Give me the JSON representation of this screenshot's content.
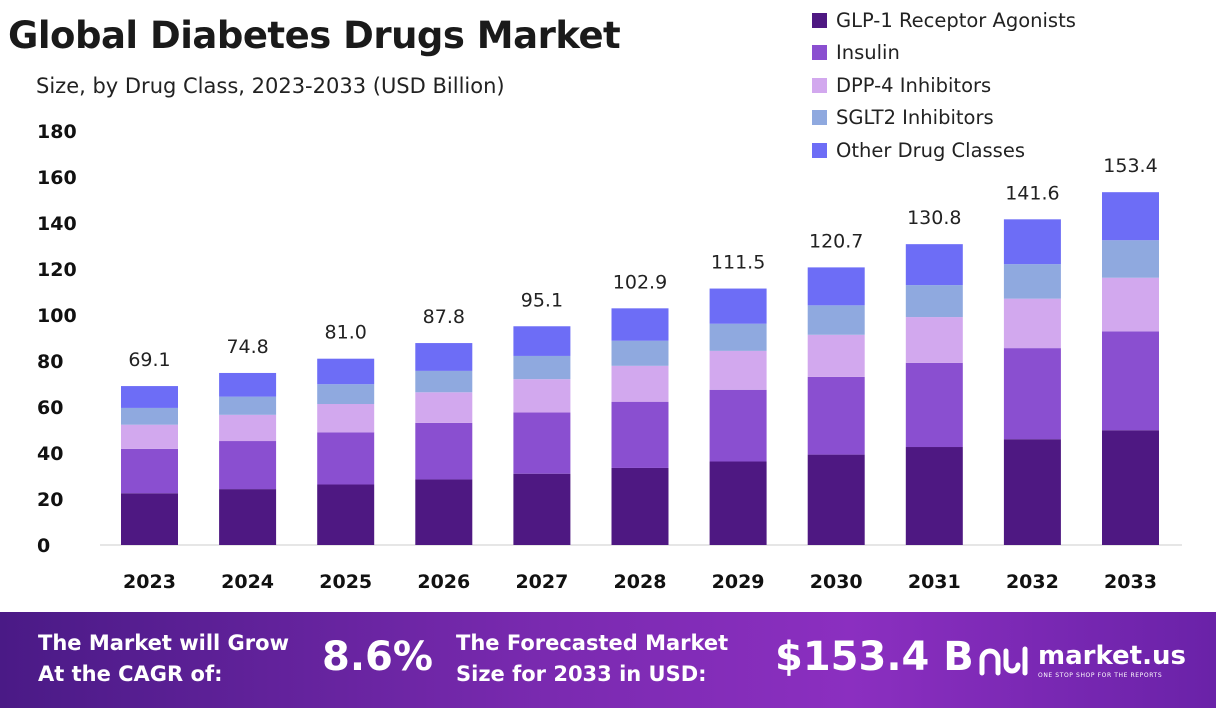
{
  "header": {
    "title": "Global Diabetes Drugs Market",
    "subtitle": "Size, by Drug Class, 2023-2033 (USD Billion)"
  },
  "chart_data": {
    "type": "bar",
    "stacked": true,
    "categories": [
      "2023",
      "2024",
      "2025",
      "2026",
      "2027",
      "2028",
      "2029",
      "2030",
      "2031",
      "2032",
      "2033"
    ],
    "totals": [
      69.1,
      74.8,
      81.0,
      87.8,
      95.1,
      102.9,
      111.5,
      120.7,
      130.8,
      141.6,
      153.4
    ],
    "total_labels": [
      "69.1",
      "74.8",
      "81.0",
      "87.8",
      "95.1",
      "102.9",
      "111.5",
      "120.7",
      "130.8",
      "141.6",
      "153.4"
    ],
    "series": [
      {
        "name": "GLP-1 Receptor Agonists",
        "color": "#4e1882",
        "values": [
          22.5,
          24.3,
          26.3,
          28.5,
          31.0,
          33.5,
          36.3,
          39.3,
          42.6,
          46.0,
          49.9
        ]
      },
      {
        "name": "Insulin",
        "color": "#8a4fd0",
        "values": [
          19.3,
          20.9,
          22.7,
          24.6,
          26.6,
          28.8,
          31.2,
          33.8,
          36.6,
          39.6,
          43.0
        ]
      },
      {
        "name": "DPP-4 Inhibitors",
        "color": "#d2a8ee",
        "values": [
          10.5,
          11.4,
          12.3,
          13.3,
          14.5,
          15.6,
          16.9,
          18.3,
          19.9,
          21.5,
          23.3
        ]
      },
      {
        "name": "SGLT2 Inhibitors",
        "color": "#8fa9df",
        "values": [
          7.3,
          7.9,
          8.6,
          9.3,
          10.1,
          10.9,
          11.8,
          12.8,
          13.9,
          15.0,
          16.3
        ]
      },
      {
        "name": "Other Drug Classes",
        "color": "#6d6df6",
        "values": [
          9.5,
          10.3,
          11.1,
          12.1,
          12.9,
          14.1,
          15.3,
          16.5,
          17.8,
          19.5,
          20.9
        ]
      }
    ],
    "y_ticks": [
      "0",
      "20",
      "40",
      "60",
      "80",
      "100",
      "120",
      "140",
      "160",
      "180"
    ],
    "ylim": [
      0,
      180
    ],
    "grid": false,
    "legend_position": "top-right"
  },
  "footer": {
    "cagr_text_line1": "The Market will Grow",
    "cagr_text_line2": "At the CAGR of:",
    "cagr_value": "8.6%",
    "forecast_text_line1": "The Forecasted Market",
    "forecast_text_line2": "Size for 2033 in USD:",
    "forecast_value": "$153.4 B",
    "brand_name": "market.us",
    "brand_tagline": "ONE STOP SHOP FOR THE REPORTS",
    "background_color": "#7a2ab0"
  }
}
